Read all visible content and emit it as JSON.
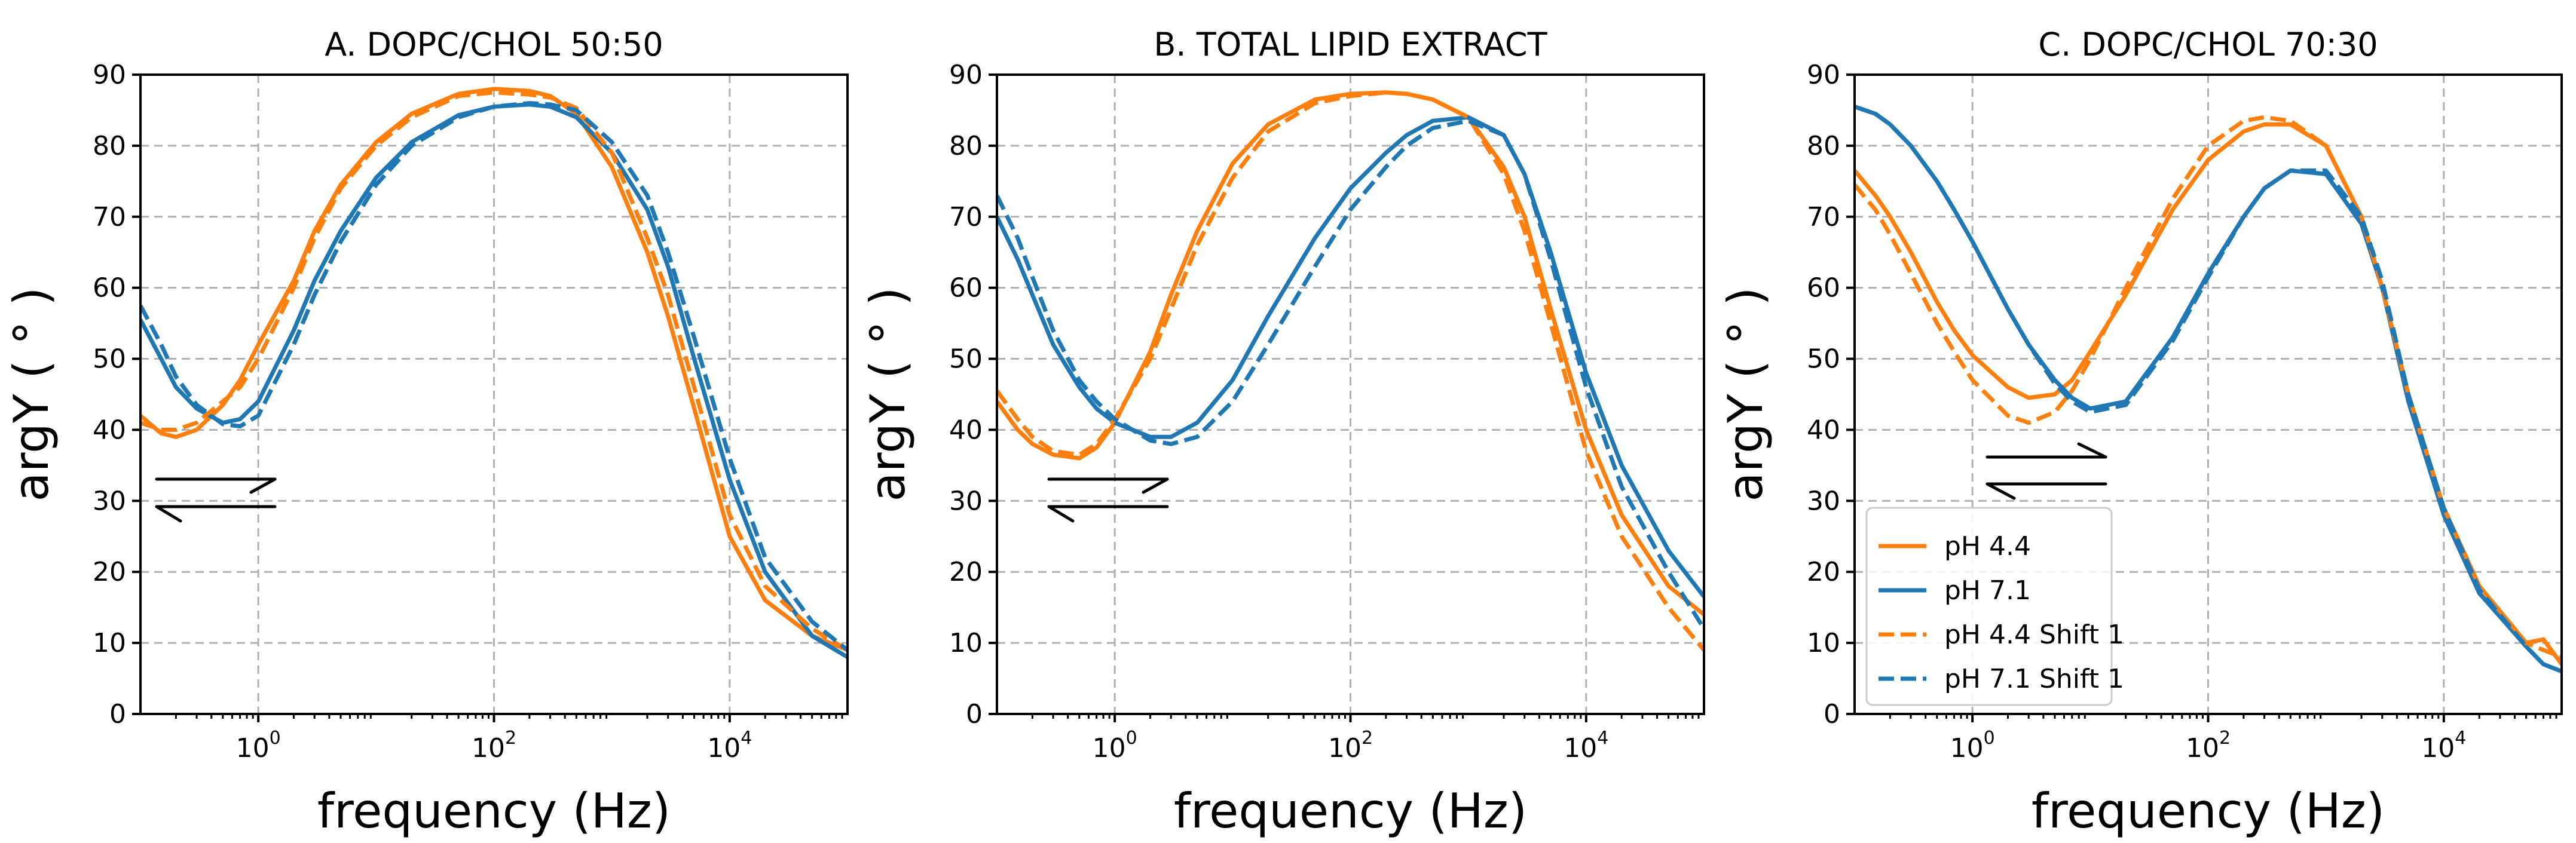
{
  "figure": {
    "colors": {
      "ph44": "#ff7f0e",
      "ph71": "#1f77b4",
      "axis": "#000000",
      "grid": "#b0b0b0"
    }
  },
  "legend": {
    "location": "lower-left",
    "entries": [
      {
        "label": "pH 4.4",
        "series": "ph44",
        "style": "solid"
      },
      {
        "label": "pH 7.1",
        "series": "ph71",
        "style": "solid"
      },
      {
        "label": "pH 4.4 Shift 1",
        "series": "ph44",
        "style": "dashed"
      },
      {
        "label": "pH 7.1 Shift 1",
        "series": "ph71",
        "style": "dashed"
      }
    ]
  },
  "chart_data": [
    {
      "type": "line",
      "title": "A. DOPC/CHOL 50:50",
      "xlabel": "frequency (Hz)",
      "ylabel": "argY ( ° )",
      "xscale": "log",
      "xlim": [
        0.1,
        100000
      ],
      "ylim": [
        0,
        90
      ],
      "x_ticks": [
        {
          "base": "10",
          "exp": "0",
          "value": 1
        },
        {
          "base": "10",
          "exp": "2",
          "value": 100
        },
        {
          "base": "10",
          "exp": "4",
          "value": 10000
        }
      ],
      "y_ticks": [
        "0",
        "10",
        "20",
        "30",
        "40",
        "50",
        "60",
        "70",
        "80",
        "90"
      ],
      "grid": true,
      "annotation": "equilibrium-arrows",
      "series": [
        {
          "name": "pH 4.4",
          "style": "solid",
          "color": "ph44",
          "x": [
            0.1,
            0.15,
            0.2,
            0.3,
            0.5,
            0.7,
            1,
            2,
            3,
            5,
            10,
            20,
            50,
            100,
            200,
            300,
            500,
            1000,
            2000,
            3000,
            5000,
            10000,
            20000,
            50000,
            100000
          ],
          "y": [
            42,
            39.5,
            39,
            40,
            43.5,
            47,
            52,
            61,
            68,
            74.5,
            80.5,
            84.5,
            87.3,
            88,
            87.7,
            87,
            84.5,
            77,
            65,
            56,
            43,
            25,
            16,
            11,
            9
          ]
        },
        {
          "name": "pH 7.1",
          "style": "solid",
          "color": "ph71",
          "x": [
            0.1,
            0.15,
            0.2,
            0.3,
            0.5,
            0.7,
            1,
            2,
            3,
            5,
            10,
            20,
            50,
            100,
            200,
            300,
            500,
            1000,
            2000,
            3000,
            5000,
            10000,
            20000,
            50000,
            100000
          ],
          "y": [
            55.5,
            50,
            46,
            43,
            41,
            41.5,
            44,
            54,
            61,
            68,
            75.5,
            80.5,
            84.3,
            85.5,
            85.8,
            85.5,
            84,
            79,
            71,
            63,
            50,
            33,
            20,
            11,
            8
          ]
        },
        {
          "name": "pH 4.4 Shift 1",
          "style": "dashed",
          "color": "ph44",
          "x": [
            0.1,
            0.15,
            0.2,
            0.3,
            0.5,
            0.7,
            1,
            2,
            3,
            5,
            10,
            20,
            50,
            100,
            200,
            300,
            500,
            1000,
            2000,
            3000,
            5000,
            10000,
            20000,
            50000,
            100000
          ],
          "y": [
            41,
            40,
            40,
            41,
            44,
            46,
            50,
            60,
            67,
            74,
            80,
            84,
            87,
            87.5,
            87.2,
            86.8,
            85.3,
            79,
            67,
            59,
            46,
            28,
            18,
            12,
            9
          ]
        },
        {
          "name": "pH 7.1 Shift 1",
          "style": "dashed",
          "color": "ph71",
          "x": [
            0.1,
            0.15,
            0.2,
            0.3,
            0.5,
            0.7,
            1,
            2,
            3,
            5,
            10,
            20,
            50,
            100,
            200,
            300,
            500,
            1000,
            2000,
            3000,
            5000,
            10000,
            20000,
            50000,
            100000
          ],
          "y": [
            57.5,
            52,
            47.5,
            43.5,
            40.8,
            40.5,
            42,
            52,
            59,
            66.5,
            74.5,
            80,
            84,
            85.5,
            86,
            85.8,
            85,
            80.5,
            73,
            65,
            53,
            36,
            22,
            13,
            9
          ]
        }
      ]
    },
    {
      "type": "line",
      "title": "B. TOTAL LIPID EXTRACT",
      "xlabel": "frequency (Hz)",
      "ylabel": "argY ( ° )",
      "xscale": "log",
      "xlim": [
        0.1,
        100000
      ],
      "ylim": [
        0,
        90
      ],
      "x_ticks": [
        {
          "base": "10",
          "exp": "0",
          "value": 1
        },
        {
          "base": "10",
          "exp": "2",
          "value": 100
        },
        {
          "base": "10",
          "exp": "4",
          "value": 10000
        }
      ],
      "y_ticks": [
        "0",
        "10",
        "20",
        "30",
        "40",
        "50",
        "60",
        "70",
        "80",
        "90"
      ],
      "grid": true,
      "annotation": "equilibrium-arrows",
      "series": [
        {
          "name": "pH 4.4",
          "style": "solid",
          "color": "ph44",
          "x": [
            0.1,
            0.15,
            0.2,
            0.3,
            0.5,
            0.7,
            1,
            2,
            3,
            5,
            10,
            20,
            50,
            100,
            200,
            300,
            500,
            1000,
            2000,
            3000,
            5000,
            10000,
            20000,
            50000,
            100000
          ],
          "y": [
            44,
            40,
            38,
            36.5,
            36,
            37.5,
            41,
            51,
            59,
            68,
            77.5,
            83,
            86.5,
            87.3,
            87.5,
            87.3,
            86.5,
            84,
            77,
            70,
            57,
            40,
            28,
            18,
            14
          ]
        },
        {
          "name": "pH 7.1",
          "style": "solid",
          "color": "ph71",
          "x": [
            0.1,
            0.15,
            0.2,
            0.3,
            0.5,
            0.7,
            1,
            2,
            3,
            5,
            10,
            20,
            50,
            100,
            200,
            300,
            500,
            1000,
            2000,
            3000,
            5000,
            10000,
            20000,
            50000,
            100000
          ],
          "y": [
            70,
            64,
            59,
            52,
            46,
            43,
            41,
            39,
            39,
            41,
            47,
            56,
            67,
            74,
            79,
            81.5,
            83.5,
            84,
            81.5,
            76,
            65,
            48,
            35,
            23,
            16.5
          ]
        },
        {
          "name": "pH 4.4 Shift 1",
          "style": "dashed",
          "color": "ph44",
          "x": [
            0.1,
            0.15,
            0.2,
            0.3,
            0.5,
            0.7,
            1,
            2,
            3,
            5,
            10,
            20,
            50,
            100,
            200,
            300,
            500,
            1000,
            2000,
            3000,
            5000,
            10000,
            20000,
            50000,
            100000
          ],
          "y": [
            45.5,
            41.5,
            39,
            37,
            36.5,
            38,
            41.5,
            50,
            57,
            66,
            75.5,
            82,
            86,
            87,
            87.5,
            87.3,
            86.5,
            84,
            76,
            68,
            55,
            37,
            25,
            15,
            9
          ]
        },
        {
          "name": "pH 7.1 Shift 1",
          "style": "dashed",
          "color": "ph71",
          "x": [
            0.1,
            0.15,
            0.2,
            0.3,
            0.5,
            0.7,
            1,
            2,
            3,
            5,
            10,
            20,
            50,
            100,
            200,
            300,
            500,
            1000,
            2000,
            3000,
            5000,
            10000,
            20000,
            50000,
            100000
          ],
          "y": [
            73,
            67,
            61.5,
            54,
            47,
            44,
            41.5,
            38.5,
            38,
            39,
            44,
            52,
            63,
            71,
            77,
            80,
            82.5,
            83.5,
            81.5,
            76,
            64,
            46,
            32,
            20,
            12
          ]
        }
      ]
    },
    {
      "type": "line",
      "title": "C. DOPC/CHOL 70:30",
      "xlabel": "frequency (Hz)",
      "ylabel": "argY ( ° )",
      "xscale": "log",
      "xlim": [
        0.1,
        100000
      ],
      "ylim": [
        0,
        90
      ],
      "x_ticks": [
        {
          "base": "10",
          "exp": "0",
          "value": 1
        },
        {
          "base": "10",
          "exp": "2",
          "value": 100
        },
        {
          "base": "10",
          "exp": "4",
          "value": 10000
        }
      ],
      "y_ticks": [
        "0",
        "10",
        "20",
        "30",
        "40",
        "50",
        "60",
        "70",
        "80",
        "90"
      ],
      "grid": true,
      "annotation": "equilibrium-arrows",
      "series": [
        {
          "name": "pH 4.4",
          "style": "solid",
          "color": "ph44",
          "x": [
            0.1,
            0.15,
            0.2,
            0.3,
            0.5,
            0.7,
            1,
            2,
            3,
            5,
            7,
            10,
            20,
            50,
            100,
            200,
            300,
            500,
            1000,
            2000,
            3000,
            5000,
            10000,
            20000,
            50000,
            70000,
            100000
          ],
          "y": [
            76.5,
            73,
            70,
            65,
            58,
            54,
            50.5,
            46,
            44.5,
            45,
            47,
            51,
            59,
            71,
            78,
            82,
            83,
            83,
            80,
            70,
            60,
            45,
            29,
            18,
            10,
            10.5,
            7
          ]
        },
        {
          "name": "pH 7.1",
          "style": "solid",
          "color": "ph71",
          "x": [
            0.1,
            0.15,
            0.2,
            0.3,
            0.5,
            0.7,
            1,
            2,
            3,
            5,
            7,
            10,
            20,
            50,
            100,
            200,
            300,
            500,
            1000,
            2000,
            3000,
            5000,
            10000,
            20000,
            50000,
            70000,
            100000
          ],
          "y": [
            85.5,
            84.5,
            83,
            80,
            75,
            71,
            66.5,
            57,
            52,
            47,
            44.5,
            43,
            44,
            53,
            62,
            70,
            74,
            76.5,
            76,
            69,
            60,
            44,
            28,
            17,
            9.5,
            7,
            6
          ]
        },
        {
          "name": "pH 4.4 Shift 1",
          "style": "dashed",
          "color": "ph44",
          "x": [
            0.1,
            0.15,
            0.2,
            0.3,
            0.5,
            0.7,
            1,
            2,
            3,
            5,
            7,
            10,
            20,
            50,
            100,
            200,
            300,
            500,
            1000,
            2000,
            3000,
            5000,
            10000,
            20000,
            50000,
            70000,
            100000
          ],
          "y": [
            74.5,
            71,
            67.5,
            62,
            55,
            51,
            47,
            42,
            41,
            42.5,
            45.5,
            50,
            60,
            72.5,
            80,
            83.5,
            84,
            83.5,
            80,
            70,
            60,
            45,
            29,
            18,
            10,
            9,
            8
          ]
        },
        {
          "name": "pH 7.1 Shift 1",
          "style": "dashed",
          "color": "ph71",
          "x": [
            0.1,
            0.15,
            0.2,
            0.3,
            0.5,
            0.7,
            1,
            2,
            3,
            5,
            7,
            10,
            20,
            50,
            100,
            200,
            300,
            500,
            1000,
            2000,
            3000,
            5000,
            10000,
            20000,
            50000,
            70000,
            100000
          ],
          "y": [
            85.5,
            84.5,
            83,
            80,
            75,
            71,
            66.5,
            57,
            52,
            46.5,
            44,
            42.5,
            43.5,
            52.5,
            61.5,
            70,
            74,
            76.5,
            76.5,
            70,
            61,
            45,
            29,
            17.5,
            9.5,
            7,
            6
          ]
        }
      ]
    }
  ]
}
